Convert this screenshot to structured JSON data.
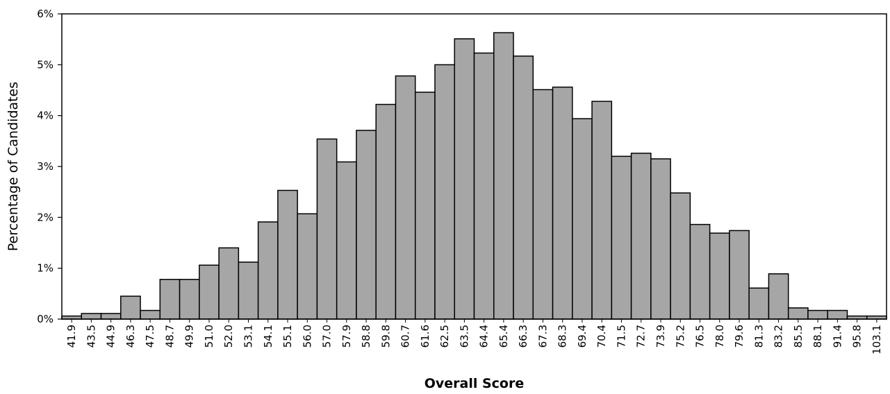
{
  "chart_data": {
    "type": "bar",
    "title": "",
    "xlabel": "Overall Score",
    "ylabel": "Percentage of Candidates",
    "ylim": [
      0,
      6
    ],
    "y_ticks": [
      "0%",
      "1%",
      "2%",
      "3%",
      "4%",
      "5%",
      "6%"
    ],
    "grid": false,
    "bar_color": "#a6a6a6",
    "edge_color": "#000000",
    "categories": [
      "41.9",
      "43.5",
      "44.9",
      "46.3",
      "47.5",
      "48.7",
      "49.9",
      "51.0",
      "52.0",
      "53.1",
      "54.1",
      "55.1",
      "56.0",
      "57.0",
      "57.9",
      "58.8",
      "59.8",
      "60.7",
      "61.6",
      "62.5",
      "63.5",
      "64.4",
      "65.4",
      "66.3",
      "67.3",
      "68.3",
      "69.4",
      "70.4",
      "71.5",
      "72.7",
      "73.9",
      "75.2",
      "76.5",
      "78.0",
      "79.6",
      "81.3",
      "83.2",
      "85.5",
      "88.1",
      "91.4",
      "95.8",
      "103.1"
    ],
    "values": [
      0.06,
      0.11,
      0.11,
      0.45,
      0.17,
      0.78,
      0.78,
      1.06,
      1.4,
      1.12,
      1.91,
      2.53,
      2.07,
      3.54,
      3.09,
      3.71,
      4.22,
      4.78,
      4.46,
      5.0,
      5.51,
      5.23,
      5.63,
      5.17,
      4.51,
      4.56,
      3.94,
      4.28,
      3.2,
      3.26,
      3.15,
      2.48,
      1.86,
      1.69,
      1.74,
      0.61,
      0.89,
      0.22,
      0.17,
      0.17,
      0.06,
      0.06
    ]
  }
}
